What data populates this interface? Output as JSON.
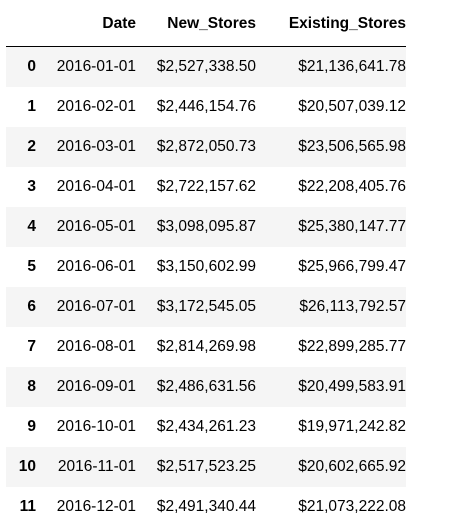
{
  "table": {
    "columns": [
      "Date",
      "New_Stores",
      "Existing_Stores"
    ],
    "rows": [
      {
        "index": "0",
        "date": "2016-01-01",
        "new_stores": "$2,527,338.50",
        "existing_stores": "$21,136,641.78"
      },
      {
        "index": "1",
        "date": "2016-02-01",
        "new_stores": "$2,446,154.76",
        "existing_stores": "$20,507,039.12"
      },
      {
        "index": "2",
        "date": "2016-03-01",
        "new_stores": "$2,872,050.73",
        "existing_stores": "$23,506,565.98"
      },
      {
        "index": "3",
        "date": "2016-04-01",
        "new_stores": "$2,722,157.62",
        "existing_stores": "$22,208,405.76"
      },
      {
        "index": "4",
        "date": "2016-05-01",
        "new_stores": "$3,098,095.87",
        "existing_stores": "$25,380,147.77"
      },
      {
        "index": "5",
        "date": "2016-06-01",
        "new_stores": "$3,150,602.99",
        "existing_stores": "$25,966,799.47"
      },
      {
        "index": "6",
        "date": "2016-07-01",
        "new_stores": "$3,172,545.05",
        "existing_stores": "$26,113,792.57"
      },
      {
        "index": "7",
        "date": "2016-08-01",
        "new_stores": "$2,814,269.98",
        "existing_stores": "$22,899,285.77"
      },
      {
        "index": "8",
        "date": "2016-09-01",
        "new_stores": "$2,486,631.56",
        "existing_stores": "$20,499,583.91"
      },
      {
        "index": "9",
        "date": "2016-10-01",
        "new_stores": "$2,434,261.23",
        "existing_stores": "$19,971,242.82"
      },
      {
        "index": "10",
        "date": "2016-11-01",
        "new_stores": "$2,517,523.25",
        "existing_stores": "$20,602,665.92"
      },
      {
        "index": "11",
        "date": "2016-12-01",
        "new_stores": "$2,491,340.44",
        "existing_stores": "$21,073,222.08"
      }
    ]
  }
}
